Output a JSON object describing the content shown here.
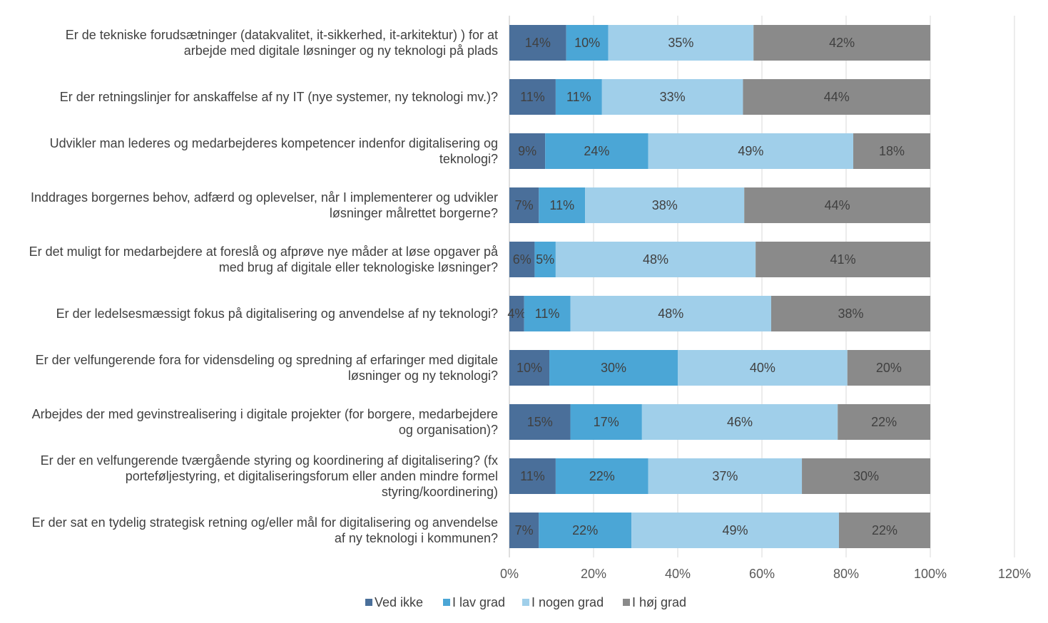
{
  "chart_data": {
    "type": "bar",
    "orientation": "horizontal",
    "stacked": true,
    "categories": [
      [
        "Er de tekniske forudsætninger (datakvalitet, it-sikkerhed, it-arkitektur) ) for at",
        "arbejde med digitale løsninger og ny teknologi på plads"
      ],
      [
        "Er der retningslinjer for anskaffelse af ny IT (nye systemer, ny teknologi mv.)?"
      ],
      [
        "Udvikler man lederes og medarbejderes kompetencer indenfor digitalisering og",
        "teknologi?"
      ],
      [
        "Inddrages borgernes behov, adfærd og oplevelser, når I implementerer og udvikler",
        "løsninger målrettet borgerne?"
      ],
      [
        "Er det muligt for medarbejdere at foreslå og afprøve nye måder at løse opgaver på",
        "med brug af digitale eller teknologiske løsninger?"
      ],
      [
        "Er der ledelsesmæssigt fokus på digitalisering og anvendelse af ny teknologi?"
      ],
      [
        "Er der velfungerende fora for vidensdeling og spredning af erfaringer med digitale",
        "løsninger og ny teknologi?"
      ],
      [
        "Arbejdes der med gevinstrealisering i digitale projekter (for borgere, medarbejdere",
        "og organisation)?"
      ],
      [
        "Er der en velfungerende tværgående styring og koordinering af digitalisering? (fx",
        "porteføljestyring, et digitaliseringsforum eller anden mindre formel",
        "styring/koordinering)"
      ],
      [
        "Er der sat en tydelig strategisk retning og/eller mål for digitalisering og anvendelse",
        "af ny teknologi i kommunen?"
      ]
    ],
    "series": [
      {
        "name": "Ved ikke",
        "color": "#4a6f9a",
        "values": [
          13.5,
          11,
          8.5,
          7,
          6,
          3.5,
          9.5,
          14.5,
          11,
          7
        ],
        "labels": [
          "14%",
          "11%",
          "9%",
          "7%",
          "6%",
          "4%",
          "10%",
          "15%",
          "11%",
          "7%"
        ]
      },
      {
        "name": "I lav grad",
        "color": "#4ba6d6",
        "values": [
          10,
          11,
          24.5,
          11,
          5,
          11,
          30.5,
          17,
          22,
          22
        ],
        "labels": [
          "10%",
          "11%",
          "24%",
          "11%",
          "5%",
          "11%",
          "30%",
          "17%",
          "22%",
          "22%"
        ]
      },
      {
        "name": "I nogen grad",
        "color": "#a0cfea",
        "values": [
          34.5,
          33.5,
          48.7,
          37.8,
          47.5,
          47.7,
          40.3,
          46.5,
          36.5,
          49.3
        ],
        "labels": [
          "35%",
          "33%",
          "49%",
          "38%",
          "48%",
          "48%",
          "40%",
          "46%",
          "37%",
          "49%"
        ]
      },
      {
        "name": "I høj grad",
        "color": "#8a8a8a",
        "values": [
          42,
          44.5,
          18.3,
          44.2,
          41.5,
          37.8,
          19.7,
          22,
          30.5,
          21.7
        ],
        "labels": [
          "42%",
          "44%",
          "18%",
          "44%",
          "41%",
          "38%",
          "20%",
          "22%",
          "30%",
          "22%"
        ]
      }
    ],
    "xlim": [
      0,
      120
    ],
    "xticks": [
      "0%",
      "20%",
      "40%",
      "60%",
      "80%",
      "100%",
      "120%"
    ],
    "grid": true,
    "legend_position": "bottom"
  }
}
